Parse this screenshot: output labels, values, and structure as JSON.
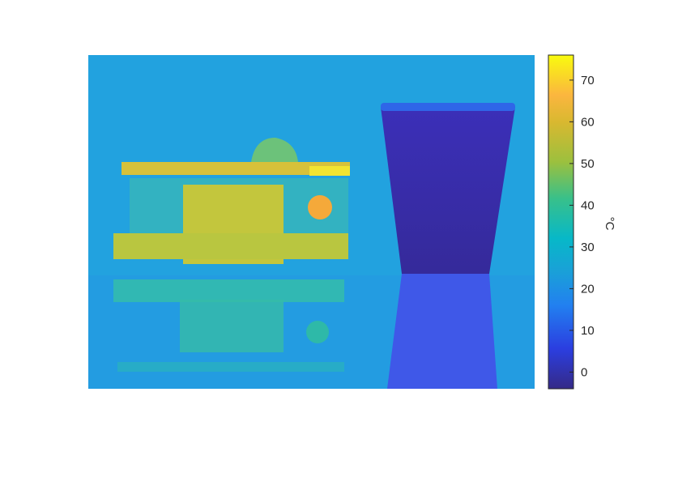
{
  "chart_data": {
    "type": "heatmap",
    "colormap": "parula",
    "colorbar": {
      "label": "°C",
      "range": [
        -4,
        76
      ],
      "ticks": [
        0,
        10,
        20,
        30,
        40,
        50,
        60,
        70
      ],
      "tick_labels": [
        "0",
        "10",
        "20",
        "30",
        "40",
        "50",
        "60",
        "70"
      ],
      "placement": "right"
    },
    "colors": {
      "background": "#22a2df",
      "hot_object": "#c8c83a",
      "hottest_spot": "#f5a93a",
      "cold_cup": "#3a2db0",
      "reflection": "#3f58e8"
    }
  }
}
